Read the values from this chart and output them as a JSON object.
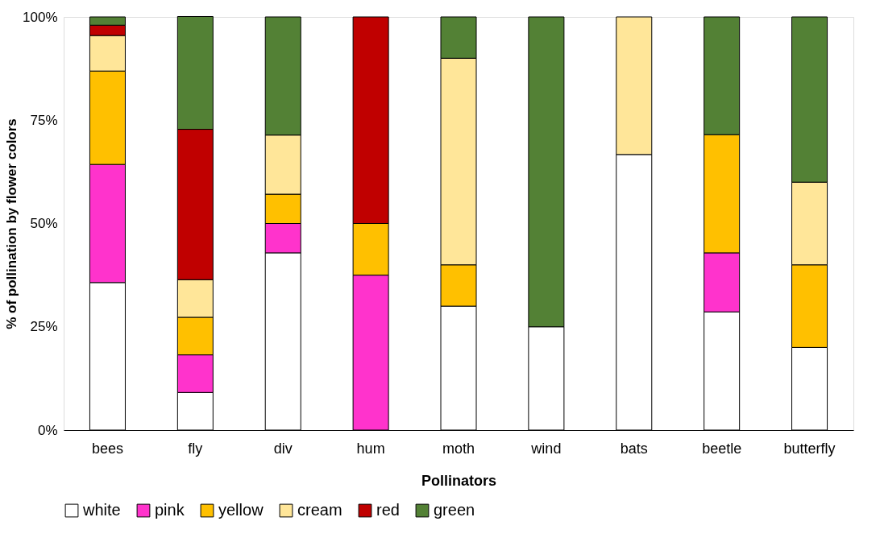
{
  "chart_data": {
    "type": "bar",
    "stacked": true,
    "xlabel": "Pollinators",
    "ylabel": "% of pollination by flower colors",
    "categories": [
      "bees",
      "fly",
      "div",
      "hum",
      "moth",
      "wind",
      "bats",
      "beetle",
      "butterfly"
    ],
    "series": [
      {
        "name": "white",
        "color": "#ffffff",
        "values": [
          35.7,
          9.1,
          42.9,
          null,
          30,
          25,
          66.7,
          28.6,
          20
        ]
      },
      {
        "name": "pink",
        "color": "#ff33cc",
        "values": [
          28.6,
          9.1,
          7.1,
          37.5,
          null,
          null,
          null,
          14.3,
          null
        ]
      },
      {
        "name": "yellow",
        "color": "#ffc000",
        "values": [
          22.6,
          9.1,
          7.1,
          12.5,
          10,
          null,
          null,
          28.6,
          20
        ]
      },
      {
        "name": "cream",
        "color": "#ffe699",
        "values": [
          8.6,
          9.1,
          14.3,
          null,
          50,
          null,
          33.3,
          null,
          20
        ]
      },
      {
        "name": "red",
        "color": "#c00000",
        "values": [
          2.5,
          36.4,
          null,
          50,
          null,
          null,
          null,
          null,
          null
        ]
      },
      {
        "name": "green",
        "color": "#538135",
        "values": [
          2.0,
          27.3,
          28.6,
          null,
          10,
          75,
          null,
          28.5,
          40
        ]
      }
    ],
    "ylim": [
      0,
      100
    ],
    "yticks": [
      {
        "value": 0,
        "label": "0%"
      },
      {
        "value": 25,
        "label": "25%"
      },
      {
        "value": 50,
        "label": "50%"
      },
      {
        "value": 75,
        "label": "75%"
      },
      {
        "value": 100,
        "label": "100%"
      }
    ],
    "grid": false,
    "legend": "bottom"
  }
}
